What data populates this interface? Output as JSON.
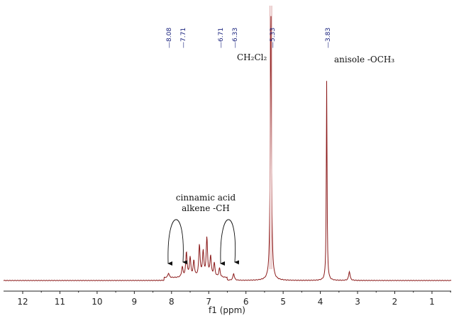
{
  "chart_data": {
    "type": "line",
    "title": "",
    "xlabel": "f1 (ppm)",
    "ylabel": "",
    "xlim": [
      12.5,
      0.5
    ],
    "x_reversed": true,
    "grid": false,
    "legend": null,
    "x_ticks": [
      12,
      11,
      10,
      9,
      8,
      7,
      6,
      5,
      4,
      3,
      2,
      1
    ],
    "line_color": "#8b1a1a",
    "peak_label_color": "#1a237e",
    "peak_labels": [
      "8.08",
      "7.71",
      "6.71",
      "6.33",
      "5.33",
      "3.83"
    ],
    "peaks": [
      {
        "ppm": 8.08,
        "rel_height": 0.02,
        "note": "cinnamic acid alkene -CH"
      },
      {
        "ppm": 7.71,
        "rel_height": 0.045,
        "note": "cinnamic acid alkene -CH"
      },
      {
        "ppm": 7.6,
        "rel_height": 0.11
      },
      {
        "ppm": 7.5,
        "rel_height": 0.085
      },
      {
        "ppm": 7.4,
        "rel_height": 0.07
      },
      {
        "ppm": 7.25,
        "rel_height": 0.14
      },
      {
        "ppm": 7.15,
        "rel_height": 0.11
      },
      {
        "ppm": 7.05,
        "rel_height": 0.17
      },
      {
        "ppm": 6.95,
        "rel_height": 0.09
      },
      {
        "ppm": 6.85,
        "rel_height": 0.06
      },
      {
        "ppm": 6.71,
        "rel_height": 0.04,
        "note": "cinnamic acid alkene -CH"
      },
      {
        "ppm": 6.33,
        "rel_height": 0.03,
        "note": "cinnamic acid alkene -CH"
      },
      {
        "ppm": 5.33,
        "rel_height": 1.2,
        "note": "CH2Cl2 (off-scale)"
      },
      {
        "ppm": 3.83,
        "rel_height": 0.88,
        "note": "anisole -OCH3"
      },
      {
        "ppm": 3.22,
        "rel_height": 0.04
      }
    ],
    "annotations": [
      {
        "text": "CH₂Cl₂",
        "ppm": 5.33
      },
      {
        "text": "anisole -OCH₃",
        "ppm": 3.83
      },
      {
        "text": "cinnamic acid",
        "line2": "alkene -CH",
        "ppm_targets": [
          8.08,
          7.71,
          6.71,
          6.33
        ]
      }
    ]
  },
  "labels": {
    "xlabel": "f1 (ppm)",
    "ch2cl2": "CH₂Cl₂",
    "anisole": "anisole -OCH₃",
    "cinnamic_line1": "cinnamic acid",
    "cinnamic_line2": "alkene -CH"
  }
}
